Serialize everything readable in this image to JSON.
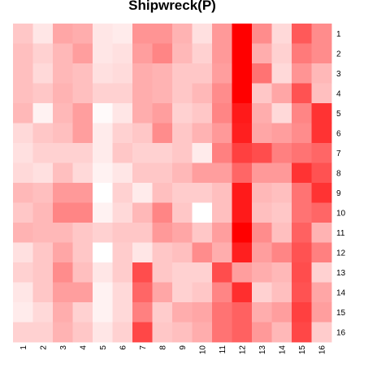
{
  "chart_data": {
    "type": "heatmap",
    "title": "Shipwreck(P)",
    "x_labels": [
      "1",
      "2",
      "3",
      "4",
      "5",
      "6",
      "7",
      "8",
      "9",
      "10",
      "11",
      "12",
      "13",
      "14",
      "15",
      "16"
    ],
    "y_labels": [
      "1",
      "2",
      "3",
      "4",
      "5",
      "6",
      "7",
      "8",
      "9",
      "10",
      "11",
      "12",
      "13",
      "14",
      "15",
      "16"
    ],
    "value_range": [
      0,
      1
    ],
    "colors": {
      "low": "#ffffff",
      "high": "#ff0000"
    },
    "values": [
      [
        0.22,
        0.1,
        0.35,
        0.32,
        0.1,
        0.08,
        0.42,
        0.42,
        0.3,
        0.12,
        0.4,
        1.0,
        0.45,
        0.15,
        0.65,
        0.45
      ],
      [
        0.25,
        0.18,
        0.28,
        0.38,
        0.1,
        0.12,
        0.38,
        0.48,
        0.28,
        0.18,
        0.4,
        1.0,
        0.32,
        0.18,
        0.52,
        0.45
      ],
      [
        0.25,
        0.15,
        0.28,
        0.25,
        0.12,
        0.14,
        0.32,
        0.3,
        0.22,
        0.22,
        0.38,
        1.0,
        0.55,
        0.15,
        0.42,
        0.28
      ],
      [
        0.25,
        0.22,
        0.3,
        0.25,
        0.18,
        0.18,
        0.32,
        0.3,
        0.22,
        0.28,
        0.45,
        1.0,
        0.22,
        0.35,
        0.68,
        0.25
      ],
      [
        0.28,
        0.05,
        0.28,
        0.38,
        0.02,
        0.1,
        0.32,
        0.38,
        0.18,
        0.22,
        0.48,
        0.9,
        0.32,
        0.15,
        0.48,
        0.8
      ],
      [
        0.15,
        0.22,
        0.25,
        0.38,
        0.08,
        0.18,
        0.22,
        0.45,
        0.22,
        0.3,
        0.4,
        0.88,
        0.35,
        0.38,
        0.45,
        0.8
      ],
      [
        0.12,
        0.18,
        0.18,
        0.18,
        0.08,
        0.22,
        0.18,
        0.18,
        0.22,
        0.08,
        0.5,
        0.75,
        0.7,
        0.5,
        0.55,
        0.6
      ],
      [
        0.15,
        0.12,
        0.25,
        0.15,
        0.05,
        0.1,
        0.22,
        0.22,
        0.28,
        0.38,
        0.38,
        0.6,
        0.4,
        0.4,
        0.8,
        0.68
      ],
      [
        0.28,
        0.25,
        0.4,
        0.4,
        0.0,
        0.18,
        0.08,
        0.25,
        0.2,
        0.2,
        0.25,
        0.9,
        0.28,
        0.25,
        0.55,
        0.8
      ],
      [
        0.22,
        0.28,
        0.48,
        0.48,
        0.05,
        0.15,
        0.28,
        0.48,
        0.22,
        0.0,
        0.25,
        0.9,
        0.25,
        0.22,
        0.55,
        0.6
      ],
      [
        0.3,
        0.28,
        0.28,
        0.22,
        0.18,
        0.22,
        0.22,
        0.4,
        0.35,
        0.22,
        0.38,
        1.0,
        0.45,
        0.25,
        0.62,
        0.3
      ],
      [
        0.12,
        0.22,
        0.35,
        0.22,
        0.0,
        0.2,
        0.1,
        0.22,
        0.25,
        0.45,
        0.32,
        0.88,
        0.38,
        0.48,
        0.68,
        0.5
      ],
      [
        0.18,
        0.22,
        0.45,
        0.25,
        0.1,
        0.2,
        0.7,
        0.22,
        0.18,
        0.18,
        0.7,
        0.38,
        0.32,
        0.28,
        0.7,
        0.18
      ],
      [
        0.1,
        0.22,
        0.38,
        0.38,
        0.05,
        0.15,
        0.6,
        0.35,
        0.18,
        0.22,
        0.48,
        0.82,
        0.18,
        0.25,
        0.68,
        0.35
      ],
      [
        0.08,
        0.15,
        0.32,
        0.18,
        0.05,
        0.15,
        0.5,
        0.2,
        0.32,
        0.35,
        0.55,
        0.62,
        0.32,
        0.38,
        0.75,
        0.38
      ],
      [
        0.18,
        0.18,
        0.3,
        0.22,
        0.1,
        0.18,
        0.72,
        0.22,
        0.25,
        0.32,
        0.55,
        0.62,
        0.4,
        0.28,
        0.72,
        0.2
      ]
    ]
  }
}
